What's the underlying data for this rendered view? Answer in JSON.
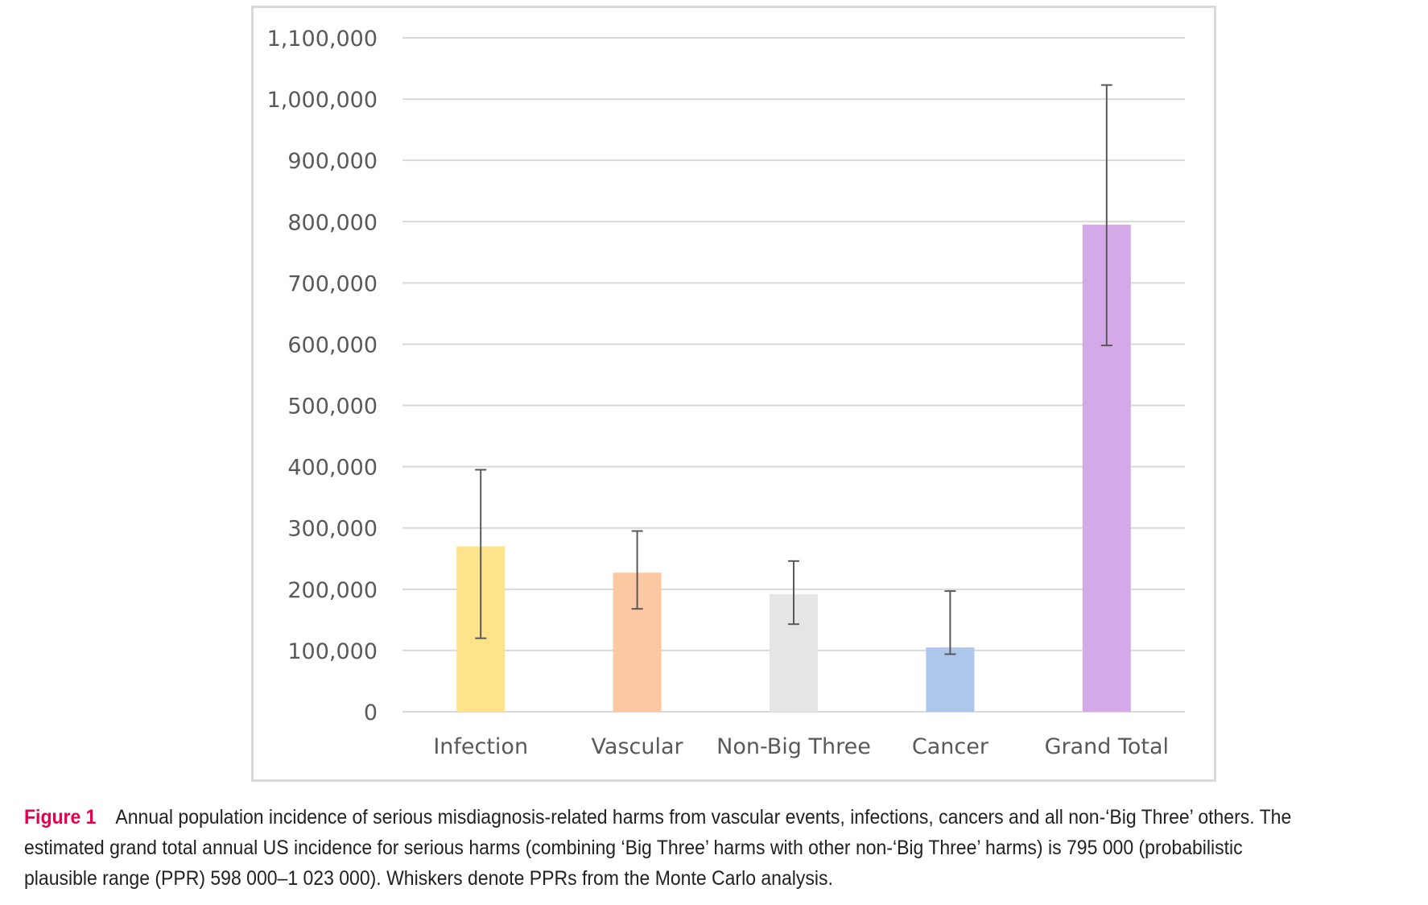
{
  "chart_data": {
    "type": "bar",
    "title": "",
    "xlabel": "",
    "ylabel": "",
    "categories": [
      "Infection",
      "Vascular",
      "Non-Big Three",
      "Cancer",
      "Grand Total"
    ],
    "values": [
      270000,
      227000,
      192000,
      105000,
      795000
    ],
    "error_low": [
      120000,
      168000,
      143000,
      94000,
      598000
    ],
    "error_high": [
      395000,
      295000,
      246000,
      197000,
      1023000
    ],
    "colors": [
      "#ffe38a",
      "#fdc7a2",
      "#e5e5e5",
      "#aec6ea",
      "#d4a9e8"
    ],
    "ylim": [
      0,
      1100000
    ],
    "yticks": [
      0,
      100000,
      200000,
      300000,
      400000,
      500000,
      600000,
      700000,
      800000,
      900000,
      1000000,
      1100000
    ],
    "ytick_labels": [
      "0",
      "100,000",
      "200,000",
      "300,000",
      "400,000",
      "500,000",
      "600,000",
      "700,000",
      "800,000",
      "900,000",
      "1,000,000",
      "1,100,000"
    ],
    "grid": true
  },
  "caption": {
    "label": "Figure 1",
    "text": "Annual population incidence of serious misdiagnosis-related harms from vascular events, infections, cancers and all non-‘Big Three’ others. The estimated grand total annual US incidence for serious harms (combining ‘Big Three’ harms with other non-‘Big Three’ harms) is 795 000 (probabilistic plausible range (PPR) 598 000–1 023 000). Whiskers denote PPRs from the Monte Carlo analysis."
  }
}
